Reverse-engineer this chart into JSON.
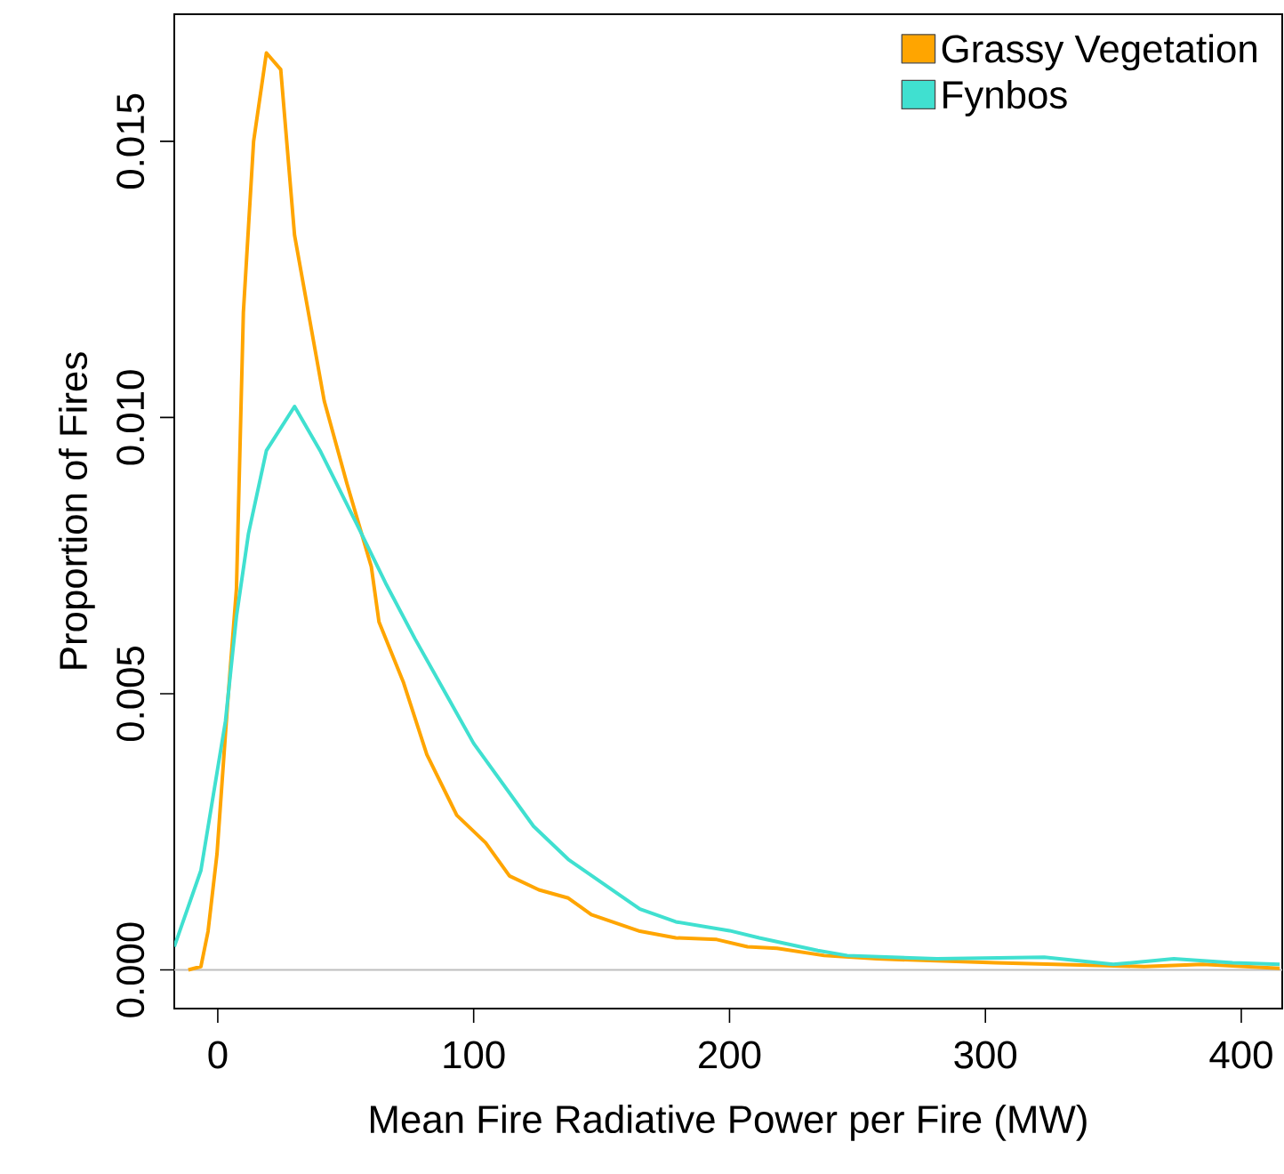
{
  "chart_data": {
    "type": "line",
    "xlabel": "Mean Fire Radiative Power per Fire (MW)",
    "ylabel": "Proportion of Fires",
    "xlim": [
      -17,
      416
    ],
    "ylim": [
      -0.0007,
      0.0173
    ],
    "xticks": [
      0,
      100,
      200,
      300,
      400
    ],
    "yticks": [
      {
        "value": 0,
        "label": "0.000"
      },
      {
        "value": 0.005,
        "label": "0.005"
      },
      {
        "value": 0.01,
        "label": "0.010"
      },
      {
        "value": 0.015,
        "label": "0.015"
      }
    ],
    "legend": "top right",
    "grid": false,
    "marker": "none",
    "line_style": "solid",
    "ref_lines": [
      {
        "axis": "y",
        "value": 0,
        "color": "#bebebe"
      }
    ],
    "series": [
      {
        "name": "Grassy Vegetation",
        "color": "#ffa500",
        "x": [
          -11.5,
          -6.6,
          -3.8,
          -0.3,
          3.8,
          7.3,
          10,
          14,
          19,
          24.6,
          30,
          41.6,
          50.5,
          60,
          63,
          72.6,
          81.7,
          93.4,
          104.7,
          114,
          125.5,
          137,
          146,
          165,
          179,
          195,
          207,
          218.6,
          237,
          257.6,
          304,
          362,
          385,
          415
        ],
        "values": [
          0,
          6e-05,
          0.0007,
          0.0021,
          0.0048,
          0.0069,
          0.0119,
          0.015,
          0.0166,
          0.0163,
          0.0133,
          0.0103,
          0.0088,
          0.0073,
          0.0063,
          0.0052,
          0.0039,
          0.0028,
          0.0023,
          0.0017,
          0.00145,
          0.0013,
          0.001,
          0.0007,
          0.00058,
          0.00055,
          0.00042,
          0.00039,
          0.00026,
          0.0002,
          0.00013,
          6e-05,
          0.0001,
          3e-05
        ]
      },
      {
        "name": "Fynbos",
        "color": "#40e0d0",
        "x": [
          -17,
          -6.6,
          3,
          7.3,
          12,
          19,
          30,
          40,
          54,
          65.6,
          77,
          100,
          123.4,
          137,
          165,
          179,
          200,
          211.6,
          234.5,
          246,
          281,
          323,
          350,
          373.6,
          396.6,
          415
        ],
        "values": [
          0.00042,
          0.0018,
          0.0045,
          0.0064,
          0.0079,
          0.0094,
          0.0102,
          0.0094,
          0.0081,
          0.007,
          0.006,
          0.0041,
          0.0026,
          0.002,
          0.0011,
          0.00087,
          0.00071,
          0.00058,
          0.00035,
          0.00026,
          0.0002,
          0.00023,
          0.0001,
          0.0002,
          0.00013,
          0.0001
        ]
      }
    ]
  }
}
